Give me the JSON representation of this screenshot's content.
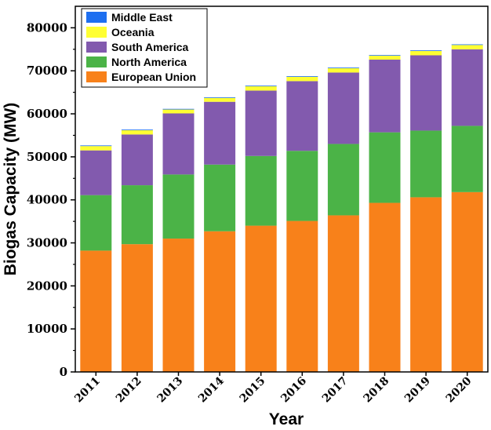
{
  "chart_data": {
    "type": "bar",
    "stacked": true,
    "title": "",
    "xlabel": "Year",
    "ylabel": "Biogas Capacity (MW)",
    "ylim": [
      0,
      85000
    ],
    "yticks": [
      "0",
      "10000",
      "20000",
      "30000",
      "40000",
      "50000",
      "60000",
      "70000",
      "80000"
    ],
    "categories": [
      "2011",
      "2012",
      "2013",
      "2014",
      "2015",
      "2016",
      "2017",
      "2018",
      "2019",
      "2020"
    ],
    "series": [
      {
        "name": "European Union",
        "color": "#F8811A",
        "values": [
          28200,
          29700,
          31000,
          32700,
          34000,
          35100,
          36400,
          39300,
          40600,
          41800
        ]
      },
      {
        "name": "North America",
        "color": "#4BB347",
        "values": [
          12900,
          13700,
          14900,
          15500,
          16200,
          16300,
          16600,
          16400,
          15500,
          15400
        ]
      },
      {
        "name": "South America",
        "color": "#825AAE",
        "values": [
          10400,
          11800,
          14200,
          14600,
          15200,
          16200,
          16600,
          16900,
          17500,
          17800
        ]
      },
      {
        "name": "Oceania",
        "color": "#FFFF33",
        "values": [
          1000,
          1000,
          900,
          900,
          1000,
          1000,
          1000,
          900,
          1000,
          1000
        ]
      },
      {
        "name": "Middle East",
        "color": "#1E6FF0",
        "values": [
          150,
          150,
          150,
          150,
          150,
          150,
          150,
          150,
          150,
          150
        ]
      }
    ],
    "legend_order": [
      "Middle East",
      "Oceania",
      "South America",
      "North America",
      "European Union"
    ],
    "legend_position": "top-left"
  }
}
